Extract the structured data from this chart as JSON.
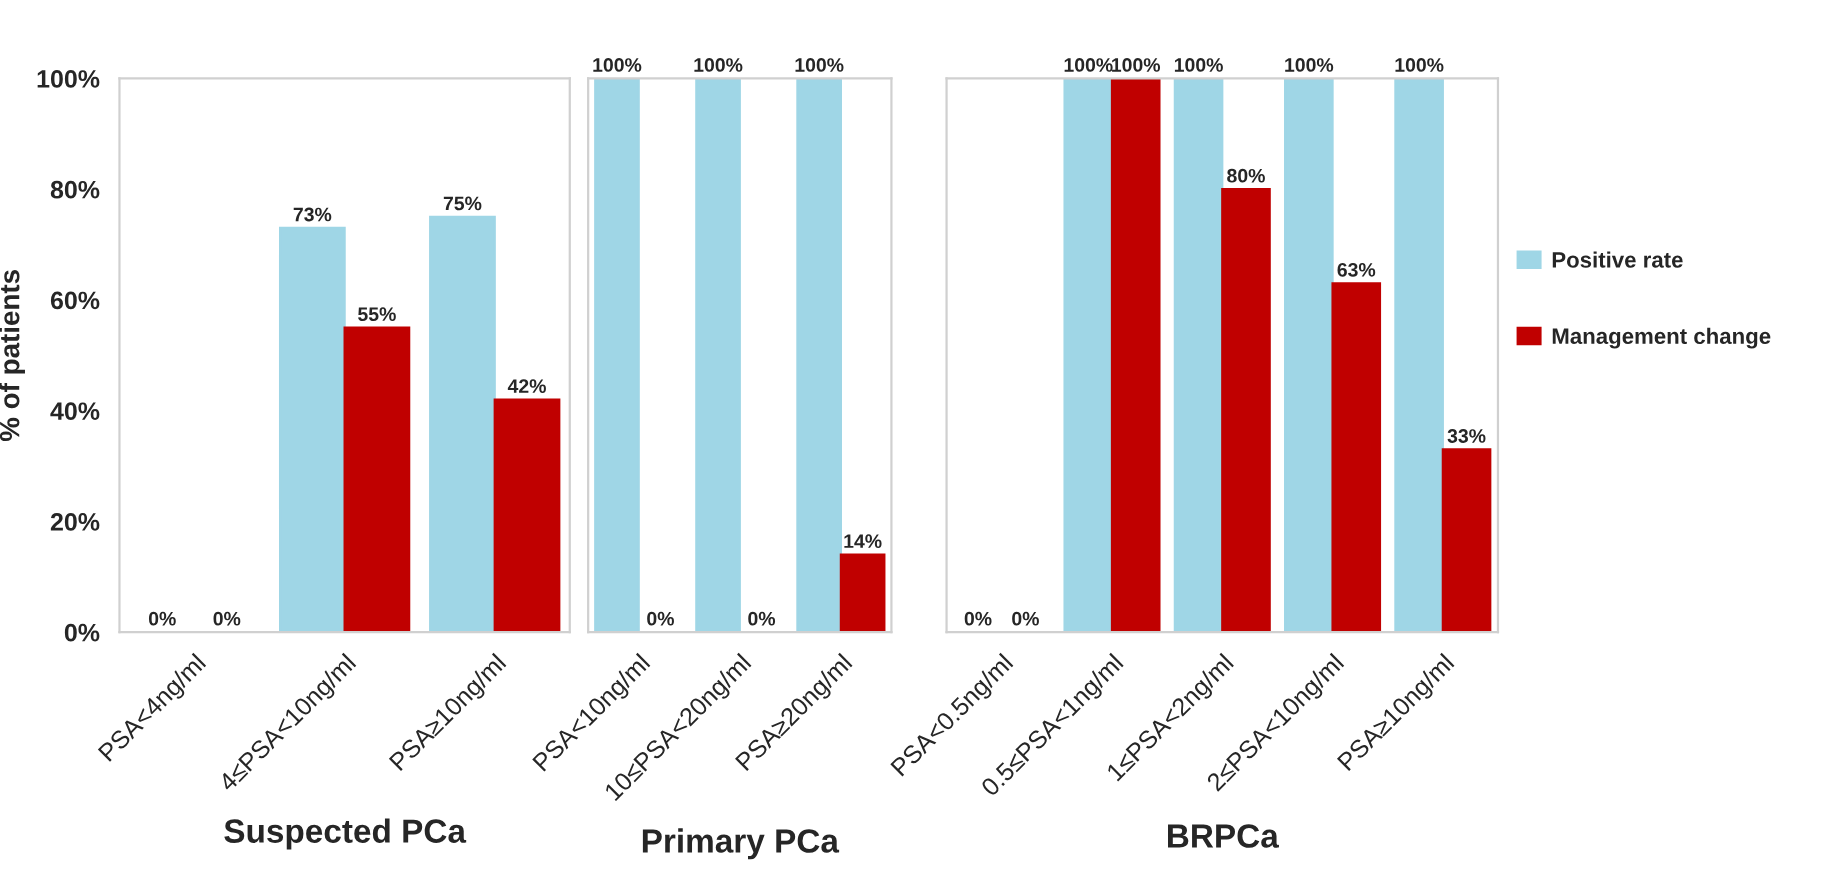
{
  "chart_data": [
    {
      "type": "bar",
      "xlabel": "Suspected PCa",
      "ylabel": "% of patients",
      "categories": [
        "PSA<4ng/ml",
        "4≤PSA<10ng/ml",
        "PSA≥10ng/ml"
      ],
      "series": [
        {
          "color": "#9fd6e6",
          "values": [
            0,
            73,
            75
          ],
          "value_labels": [
            "0%",
            "73%",
            "75%"
          ]
        },
        {
          "color": "#c00000",
          "values": [
            0,
            55,
            42
          ],
          "value_labels": [
            "0%",
            "55%",
            "42%"
          ]
        }
      ],
      "ylim": [
        0,
        100
      ],
      "yticks": [
        {
          "value": 0,
          "label": "0%"
        },
        {
          "value": 20,
          "label": "20%"
        },
        {
          "value": 40,
          "label": "40%"
        },
        {
          "value": 60,
          "label": "60%"
        },
        {
          "value": 80,
          "label": "80%"
        },
        {
          "value": 100,
          "label": "100%"
        }
      ],
      "legend": false
    },
    {
      "type": "bar",
      "xlabel": "Primary PCa",
      "categories": [
        "PSA<10ng/ml",
        "10≤PSA<20ng/ml",
        "PSA≥20ng/ml"
      ],
      "series": [
        {
          "color": "#9fd6e6",
          "values": [
            100,
            100,
            100
          ],
          "value_labels": [
            "100%",
            "100%",
            "100%"
          ]
        },
        {
          "color": "#c00000",
          "values": [
            0,
            0,
            14
          ],
          "value_labels": [
            "0%",
            "0%",
            "14%"
          ]
        }
      ],
      "ylim": [
        0,
        100
      ],
      "tick_labels": "x",
      "legend": false
    },
    {
      "type": "bar",
      "xlabel": "BRPCa",
      "categories": [
        "PSA<0.5ng/ml",
        "0.5≤PSA<1ng/ml",
        "1≤PSA<2ng/ml",
        "2≤PSA<10ng/ml",
        "PSA≥10ng/ml"
      ],
      "series": [
        {
          "name": "Positive rate",
          "color": "#9fd6e6",
          "values": [
            0,
            100,
            100,
            100,
            100
          ],
          "value_labels": [
            "0%",
            "100%",
            "100%",
            "100%",
            "100%"
          ]
        },
        {
          "name": "Management change",
          "color": "#c00000",
          "values": [
            0,
            100,
            80,
            63,
            33
          ],
          "value_labels": [
            "0%",
            "100%",
            "80%",
            "63%",
            "33%"
          ]
        }
      ],
      "ylim": [
        0,
        100
      ],
      "tick_labels": "x",
      "legend": "right"
    }
  ]
}
